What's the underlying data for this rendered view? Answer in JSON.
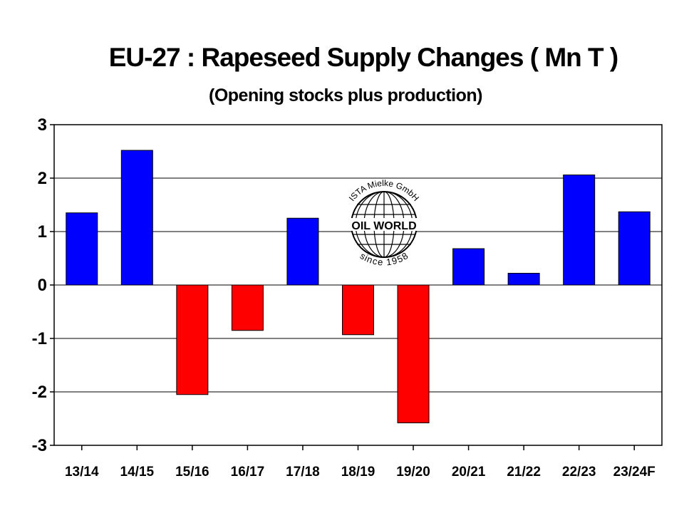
{
  "chart_data": {
    "type": "bar",
    "title": "EU-27 : Rapeseed Supply Changes ( Mn T )",
    "subtitle": "(Opening stocks plus production)",
    "categories": [
      "13/14",
      "14/15",
      "15/16",
      "16/17",
      "17/18",
      "18/19",
      "19/20",
      "20/21",
      "21/22",
      "22/23",
      "23/24F"
    ],
    "values": [
      1.35,
      2.52,
      -2.05,
      -0.85,
      1.25,
      -0.93,
      -2.58,
      0.68,
      0.22,
      2.06,
      1.37
    ],
    "ylim": [
      -3,
      3
    ],
    "yticks": [
      "3",
      "2",
      "1",
      "0",
      "-1",
      "-2",
      "-3"
    ],
    "grid": true,
    "colors": {
      "positive": "#0000ff",
      "negative": "#ff0000",
      "grid": "#000000"
    },
    "watermark": {
      "top_text": "ISTA Mielke GmbH",
      "center_text": "OIL WORLD",
      "bottom_text": "since 1958"
    }
  }
}
